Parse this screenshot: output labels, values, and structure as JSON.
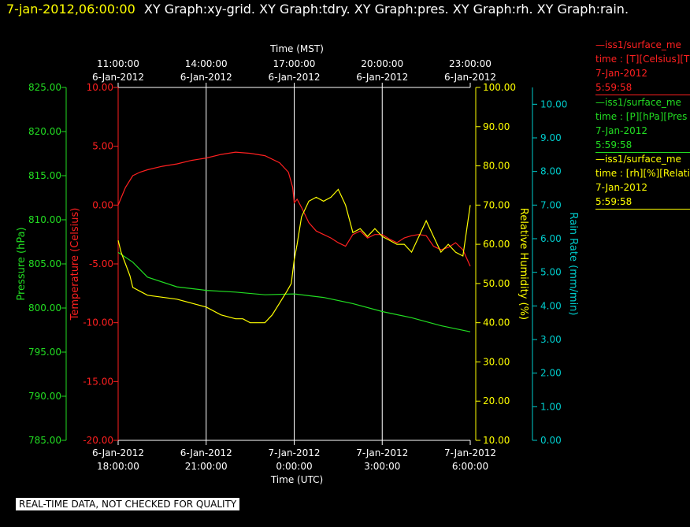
{
  "header": {
    "timestamp": "7-jan-2012,06:00:00",
    "graphs": "XY Graph:xy-grid.  XY Graph:tdry.  XY Graph:pres.  XY Graph:rh.  XY Graph:rain."
  },
  "legend": [
    {
      "line1": "—iss1/surface_me",
      "line2": "time : [T][Celsius][T",
      "line3": "7-Jan-2012",
      "line4": "5:59:58",
      "color": "#ff2020"
    },
    {
      "line1": "—iss1/surface_me",
      "line2": "time : [P][hPa][Pres",
      "line3": "7-Jan-2012",
      "line4": "5:59:58",
      "color": "#22dd22"
    },
    {
      "line1": "—iss1/surface_me",
      "line2": "time : [rh][%][Relati",
      "line3": "7-Jan-2012",
      "line4": "5:59:58",
      "color": "#ffff00"
    }
  ],
  "footer": "REAL-TIME DATA, NOT CHECKED FOR QUALITY",
  "chart_data": {
    "type": "line",
    "top_axis": {
      "label": "Time (MST)",
      "ticks": [
        {
          "time": "11:00:00",
          "date": "6-Jan-2012"
        },
        {
          "time": "14:00:00",
          "date": "6-Jan-2012"
        },
        {
          "time": "17:00:00",
          "date": "6-Jan-2012"
        },
        {
          "time": "20:00:00",
          "date": "6-Jan-2012"
        },
        {
          "time": "23:00:00",
          "date": "6-Jan-2012"
        }
      ]
    },
    "bottom_axis": {
      "label": "Time (UTC)",
      "range_hours": [
        0,
        12
      ],
      "ticks": [
        {
          "date": "6-Jan-2012",
          "time": "18:00:00"
        },
        {
          "date": "6-Jan-2012",
          "time": "21:00:00"
        },
        {
          "date": "7-Jan-2012",
          "time": "0:00:00"
        },
        {
          "date": "7-Jan-2012",
          "time": "3:00:00"
        },
        {
          "date": "7-Jan-2012",
          "time": "6:00:00"
        }
      ]
    },
    "axes": {
      "pressure": {
        "label": "Pressure (hPa)",
        "range": [
          785,
          825
        ],
        "ticks": [
          "785.00",
          "790.00",
          "795.00",
          "800.00",
          "805.00",
          "810.00",
          "815.00",
          "820.00",
          "825.00"
        ],
        "color": "#22dd22"
      },
      "temperature": {
        "label": "Temperature (Celsius)",
        "range": [
          -20,
          10
        ],
        "ticks": [
          "-20.00",
          "-15.00",
          "-10.00",
          "-5.00",
          "0.00",
          "5.00",
          "10.00"
        ],
        "color": "#ff2020"
      },
      "humidity": {
        "label": "Relative Humidity (%)",
        "range": [
          10,
          100
        ],
        "ticks": [
          "10.00",
          "20.00",
          "30.00",
          "40.00",
          "50.00",
          "60.00",
          "70.00",
          "80.00",
          "90.00",
          "100.00"
        ],
        "color": "#ffff00"
      },
      "rain": {
        "label": "Rain Rate (mm/min)",
        "range": [
          0,
          10.5
        ],
        "ticks": [
          "0.00",
          "1.00",
          "2.00",
          "3.00",
          "4.00",
          "5.00",
          "6.00",
          "7.00",
          "8.00",
          "9.00",
          "10.00"
        ],
        "color": "#00cccc"
      }
    },
    "grid": "vertical",
    "series": [
      {
        "axis": "temperature",
        "color": "#ff2020",
        "x": [
          0,
          0.25,
          0.5,
          0.75,
          1,
          1.5,
          2,
          2.5,
          3,
          3.5,
          4,
          4.5,
          5,
          5.5,
          5.8,
          5.95,
          6.0,
          6.1,
          6.25,
          6.5,
          6.75,
          7,
          7.25,
          7.5,
          7.75,
          8,
          8.25,
          8.5,
          8.75,
          9,
          9.25,
          9.5,
          9.75,
          10,
          10.25,
          10.5,
          10.75,
          11,
          11.25,
          11.5,
          11.75,
          12
        ],
        "y": [
          0,
          1.5,
          2.5,
          2.8,
          3,
          3.3,
          3.5,
          3.8,
          4,
          4.3,
          4.5,
          4.4,
          4.2,
          3.6,
          2.8,
          1.5,
          0.2,
          0.5,
          -0.2,
          -1.5,
          -2.2,
          -2.5,
          -2.8,
          -3.2,
          -3.5,
          -2.5,
          -2.2,
          -2.8,
          -2.5,
          -2.5,
          -2.9,
          -3.2,
          -2.8,
          -2.6,
          -2.5,
          -2.6,
          -3.5,
          -3.8,
          -3.6,
          -3.2,
          -3.8,
          -5.2
        ]
      },
      {
        "axis": "pressure",
        "color": "#22dd22",
        "x": [
          0,
          0.5,
          1,
          2,
          3,
          4,
          5,
          6,
          7,
          8,
          9,
          10,
          11,
          12
        ],
        "y": [
          806.3,
          805.2,
          803.5,
          802.4,
          802.0,
          801.8,
          801.5,
          801.6,
          801.2,
          800.5,
          799.6,
          798.9,
          798.0,
          797.3
        ]
      },
      {
        "axis": "humidity",
        "color": "#ffff00",
        "x": [
          0,
          0.1,
          0.25,
          0.4,
          0.5,
          0.75,
          1,
          1.5,
          2,
          2.5,
          3,
          3.5,
          4,
          4.25,
          4.5,
          5,
          5.25,
          5.5,
          5.75,
          5.9,
          6.0,
          6.1,
          6.25,
          6.5,
          6.75,
          7,
          7.25,
          7.5,
          7.75,
          8,
          8.25,
          8.5,
          8.75,
          9,
          9.25,
          9.5,
          9.75,
          10,
          10.25,
          10.5,
          10.75,
          11,
          11.25,
          11.5,
          11.75,
          12
        ],
        "y": [
          61,
          58,
          55,
          52,
          49,
          48,
          47,
          46.5,
          46,
          45,
          44,
          42,
          41,
          41,
          40,
          40,
          42,
          45,
          48,
          50,
          56,
          60,
          67,
          71,
          72,
          71,
          72,
          74,
          70,
          63,
          64,
          62,
          64,
          62,
          61,
          60,
          60,
          58,
          62,
          66,
          62,
          58,
          60,
          58,
          57,
          70
        ]
      }
    ]
  }
}
